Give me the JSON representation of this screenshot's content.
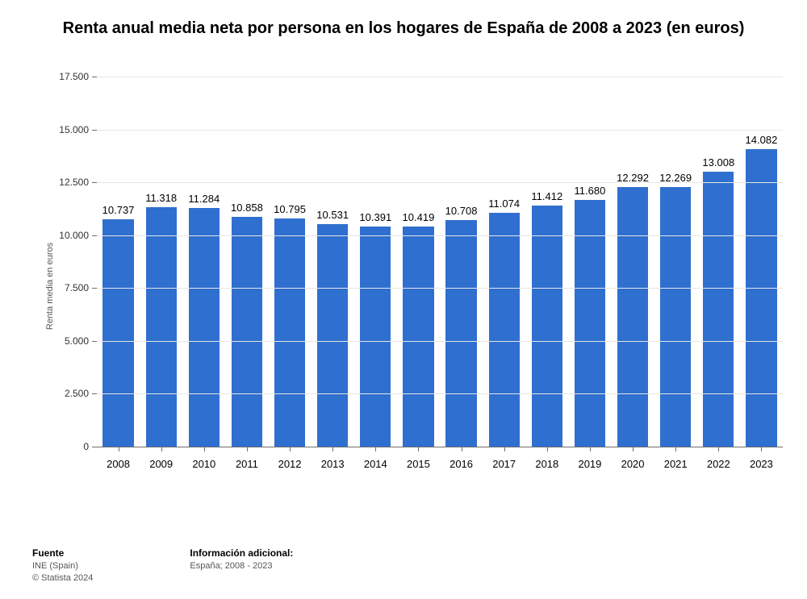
{
  "chart": {
    "type": "bar",
    "title": "Renta anual media neta por persona en los hogares de España de 2008 a 2023 (en euros)",
    "ylabel": "Renta media en euros",
    "ylim": [
      0,
      17500
    ],
    "ytick_step": 2500,
    "ytick_labels": [
      "0",
      "2.500",
      "5.000",
      "7.500",
      "10.000",
      "12.500",
      "15.000",
      "17.500"
    ],
    "categories": [
      "2008",
      "2009",
      "2010",
      "2011",
      "2012",
      "2013",
      "2014",
      "2015",
      "2016",
      "2017",
      "2018",
      "2019",
      "2020",
      "2021",
      "2022",
      "2023"
    ],
    "values": [
      10737,
      11318,
      11284,
      10858,
      10795,
      10531,
      10391,
      10419,
      10708,
      11074,
      11412,
      11680,
      12292,
      12269,
      13008,
      14082
    ],
    "value_labels": [
      "10.737",
      "11.318",
      "11.284",
      "10.858",
      "10.795",
      "10.531",
      "10.391",
      "10.419",
      "10.708",
      "11.074",
      "11.412",
      "11.680",
      "12.292",
      "12.269",
      "13.008",
      "14.082"
    ],
    "bar_color": "#2f6fcf",
    "background_color": "#ffffff",
    "grid_color": "#e6e6e6",
    "axis_color": "#6e6e6e",
    "title_fontsize": 20,
    "label_fontsize": 11,
    "tick_fontsize": 12,
    "value_label_fontsize": 13,
    "bar_width": 0.72
  },
  "footer": {
    "source_title": "Fuente",
    "source_line1": "INE (Spain)",
    "source_line2": "© Statista 2024",
    "info_title": "Información adicional:",
    "info_line1": "España; 2008 - 2023"
  }
}
